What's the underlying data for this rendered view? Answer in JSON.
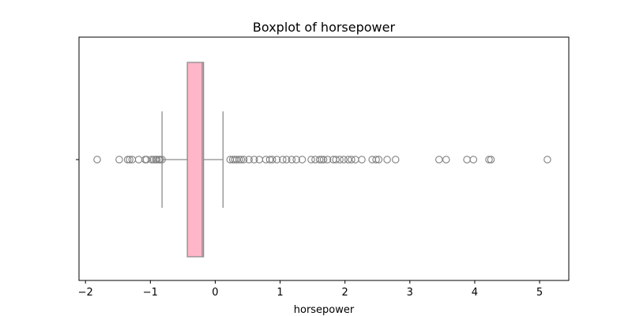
{
  "chart_data": {
    "type": "boxplot",
    "title": "Boxplot of horsepower",
    "xlabel": "horsepower",
    "ylabel": "",
    "xlim": [
      -2.1,
      5.45
    ],
    "xticks": [
      -2,
      -1,
      0,
      1,
      2,
      3,
      4,
      5
    ],
    "xtick_labels": [
      "−2",
      "−1",
      "0",
      "1",
      "2",
      "3",
      "4",
      "5"
    ],
    "orientation": "horizontal",
    "grid": false,
    "colors": {
      "box_fill": "#ffb6c8",
      "box_edge": "#8c8c8c",
      "whisker": "#8c8c8c",
      "flier_edge": "#808080"
    },
    "box": {
      "whisker_low": -0.82,
      "q1": -0.43,
      "median": -0.2,
      "q3": -0.18,
      "whisker_high": 0.12
    },
    "outliers": [
      -1.82,
      -1.48,
      -1.35,
      -1.32,
      -1.28,
      -1.18,
      -1.08,
      -1.06,
      -0.98,
      -0.95,
      -0.92,
      -0.9,
      -0.87,
      -0.85,
      -0.82,
      0.23,
      0.27,
      0.3,
      0.33,
      0.37,
      0.4,
      0.44,
      0.52,
      0.6,
      0.68,
      0.78,
      0.84,
      0.88,
      0.95,
      1.04,
      1.1,
      1.18,
      1.25,
      1.34,
      1.48,
      1.54,
      1.61,
      1.64,
      1.67,
      1.73,
      1.82,
      1.86,
      1.92,
      1.98,
      2.05,
      2.1,
      2.16,
      2.26,
      2.42,
      2.48,
      2.52,
      2.65,
      2.78,
      3.45,
      3.56,
      3.88,
      3.98,
      4.22,
      4.25,
      5.12
    ]
  }
}
